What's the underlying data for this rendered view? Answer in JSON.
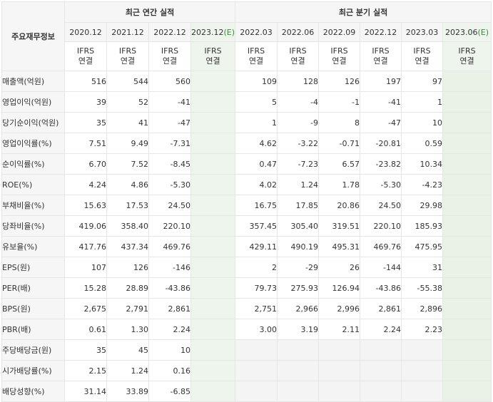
{
  "header": {
    "corner_label": "주요재무정보",
    "annual_title": "최근 연간 실적",
    "quarter_title": "최근 분기 실적",
    "annual_periods": [
      "2020.12",
      "2021.12",
      "2022.12",
      "2023.12(E)"
    ],
    "quarter_periods": [
      "2022.03",
      "2022.06",
      "2022.09",
      "2022.12",
      "2023.03",
      "2023.06(E)"
    ],
    "standard_line1": "IFRS",
    "standard_line2": "연결"
  },
  "rows": [
    {
      "label": "매출액(억원)",
      "annual": [
        "516",
        "544",
        "560",
        ""
      ],
      "quarter": [
        "109",
        "128",
        "126",
        "197",
        "97",
        ""
      ]
    },
    {
      "label": "영업이익(억원)",
      "annual": [
        "39",
        "52",
        "-41",
        ""
      ],
      "quarter": [
        "5",
        "-4",
        "-1",
        "-41",
        "1",
        ""
      ]
    },
    {
      "label": "당기순이익(억원)",
      "annual": [
        "35",
        "41",
        "-47",
        ""
      ],
      "quarter": [
        "1",
        "-9",
        "8",
        "-47",
        "10",
        ""
      ]
    },
    {
      "label": "영업이익률(%)",
      "annual": [
        "7.51",
        "9.49",
        "-7.31",
        ""
      ],
      "quarter": [
        "4.62",
        "-3.22",
        "-0.71",
        "-20.81",
        "0.59",
        ""
      ]
    },
    {
      "label": "순이익률(%)",
      "annual": [
        "6.70",
        "7.52",
        "-8.45",
        ""
      ],
      "quarter": [
        "0.47",
        "-7.23",
        "6.57",
        "-23.82",
        "10.34",
        ""
      ]
    },
    {
      "label": "ROE(%)",
      "annual": [
        "4.24",
        "4.86",
        "-5.30",
        ""
      ],
      "quarter": [
        "4.02",
        "1.24",
        "1.78",
        "-5.30",
        "-4.23",
        ""
      ]
    },
    {
      "label": "부채비율(%)",
      "annual": [
        "15.63",
        "17.53",
        "24.50",
        ""
      ],
      "quarter": [
        "16.75",
        "17.85",
        "20.86",
        "24.50",
        "29.98",
        ""
      ]
    },
    {
      "label": "당좌비율(%)",
      "annual": [
        "419.06",
        "358.40",
        "220.10",
        ""
      ],
      "quarter": [
        "357.45",
        "305.40",
        "319.51",
        "220.10",
        "185.93",
        ""
      ]
    },
    {
      "label": "유보율(%)",
      "annual": [
        "417.76",
        "437.34",
        "469.76",
        ""
      ],
      "quarter": [
        "429.11",
        "490.19",
        "495.31",
        "469.76",
        "475.95",
        ""
      ]
    },
    {
      "label": "EPS(원)",
      "annual": [
        "107",
        "126",
        "-146",
        ""
      ],
      "quarter": [
        "2",
        "-29",
        "26",
        "-144",
        "31",
        ""
      ]
    },
    {
      "label": "PER(배)",
      "annual": [
        "15.28",
        "28.89",
        "-43.86",
        ""
      ],
      "quarter": [
        "79.73",
        "275.93",
        "126.94",
        "-43.86",
        "-55.38",
        ""
      ]
    },
    {
      "label": "BPS(원)",
      "annual": [
        "2,675",
        "2,791",
        "2,861",
        ""
      ],
      "quarter": [
        "2,751",
        "2,966",
        "2,996",
        "2,861",
        "2,896",
        ""
      ]
    },
    {
      "label": "PBR(배)",
      "annual": [
        "0.61",
        "1.30",
        "2.24",
        ""
      ],
      "quarter": [
        "3.00",
        "3.19",
        "2.11",
        "2.24",
        "2.23",
        ""
      ]
    },
    {
      "label": "주당배당금(원)",
      "annual": [
        "35",
        "45",
        "10",
        ""
      ],
      "quarter": [
        "",
        "",
        "",
        "",
        "",
        ""
      ]
    },
    {
      "label": "시가배당률(%)",
      "annual": [
        "2.15",
        "1.24",
        "0.16",
        ""
      ],
      "quarter": [
        "",
        "",
        "",
        "",
        "",
        ""
      ]
    },
    {
      "label": "배당성향(%)",
      "annual": [
        "31.14",
        "33.89",
        "-6.85",
        ""
      ],
      "quarter": [
        "",
        "",
        "",
        "",
        "",
        ""
      ]
    }
  ],
  "colors": {
    "negative": "#e0303a",
    "standard_text": "#e8702a",
    "estimate_bg": "#eef5ec"
  }
}
